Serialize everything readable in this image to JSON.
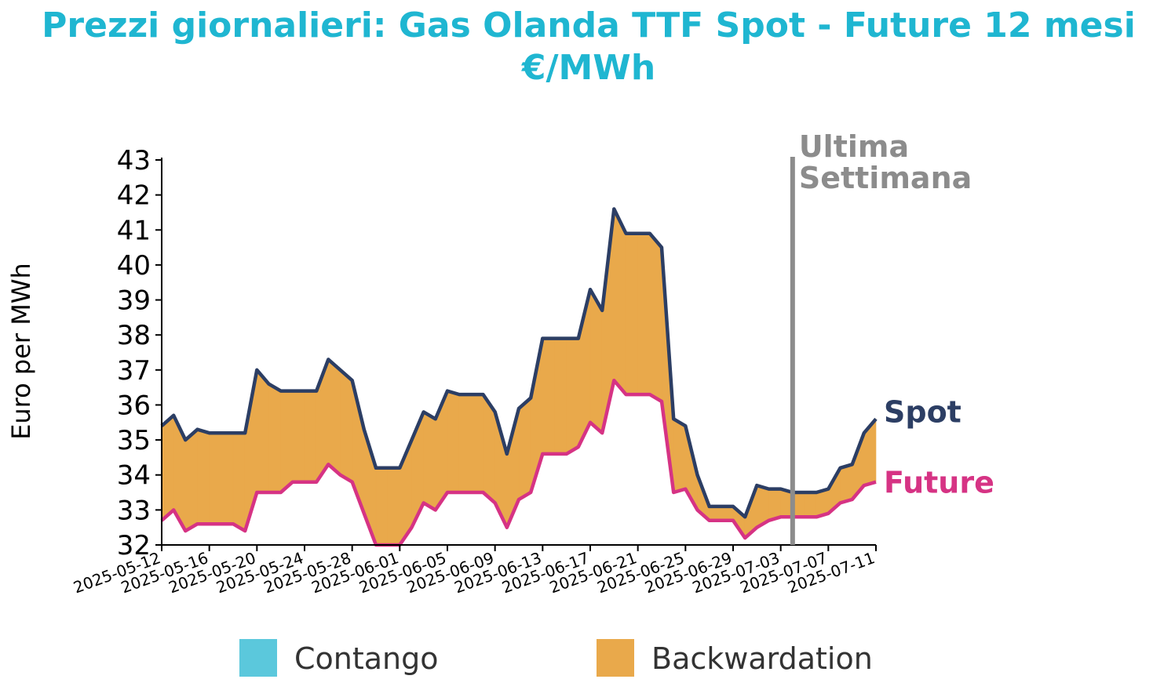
{
  "chart_data": {
    "type": "line",
    "title": "Prezzi giornalieri: Gas Olanda TTF Spot - Future 12 mesi",
    "subtitle": "€/MWh",
    "ylabel": "Euro per MWh",
    "xlabel": "",
    "ylim": [
      32,
      43
    ],
    "yticks": [
      32,
      33,
      34,
      35,
      36,
      37,
      38,
      39,
      40,
      41,
      42,
      43
    ],
    "xlim": [
      "2025-05-12",
      "2025-07-11"
    ],
    "xticks": [
      "2025-05-12",
      "2025-05-16",
      "2025-05-20",
      "2025-05-24",
      "2025-05-28",
      "2025-06-01",
      "2025-06-05",
      "2025-06-09",
      "2025-06-13",
      "2025-06-17",
      "2025-06-21",
      "2025-06-25",
      "2025-06-29",
      "2025-07-03",
      "2025-07-07",
      "2025-07-11"
    ],
    "marker_line": {
      "date": "2025-07-04",
      "label_line1": "Ultima",
      "label_line2": "Settimana"
    },
    "series": [
      {
        "name": "Spot",
        "color": "#2c3e64",
        "points": [
          [
            "2025-05-12",
            35.4
          ],
          [
            "2025-05-13",
            35.7
          ],
          [
            "2025-05-14",
            35.0
          ],
          [
            "2025-05-15",
            35.3
          ],
          [
            "2025-05-16",
            35.2
          ],
          [
            "2025-05-17",
            35.2
          ],
          [
            "2025-05-18",
            35.2
          ],
          [
            "2025-05-19",
            35.2
          ],
          [
            "2025-05-20",
            37.0
          ],
          [
            "2025-05-21",
            36.6
          ],
          [
            "2025-05-22",
            36.4
          ],
          [
            "2025-05-23",
            36.4
          ],
          [
            "2025-05-24",
            36.4
          ],
          [
            "2025-05-25",
            36.4
          ],
          [
            "2025-05-26",
            37.3
          ],
          [
            "2025-05-27",
            37.0
          ],
          [
            "2025-05-28",
            36.7
          ],
          [
            "2025-05-29",
            35.3
          ],
          [
            "2025-05-30",
            34.2
          ],
          [
            "2025-05-31",
            34.2
          ],
          [
            "2025-06-01",
            34.2
          ],
          [
            "2025-06-02",
            35.0
          ],
          [
            "2025-06-03",
            35.8
          ],
          [
            "2025-06-04",
            35.6
          ],
          [
            "2025-06-05",
            36.4
          ],
          [
            "2025-06-06",
            36.3
          ],
          [
            "2025-06-07",
            36.3
          ],
          [
            "2025-06-08",
            36.3
          ],
          [
            "2025-06-09",
            35.8
          ],
          [
            "2025-06-10",
            34.6
          ],
          [
            "2025-06-11",
            35.9
          ],
          [
            "2025-06-12",
            36.2
          ],
          [
            "2025-06-13",
            37.9
          ],
          [
            "2025-06-14",
            37.9
          ],
          [
            "2025-06-15",
            37.9
          ],
          [
            "2025-06-16",
            37.9
          ],
          [
            "2025-06-17",
            39.3
          ],
          [
            "2025-06-18",
            38.7
          ],
          [
            "2025-06-19",
            41.6
          ],
          [
            "2025-06-20",
            40.9
          ],
          [
            "2025-06-21",
            40.9
          ],
          [
            "2025-06-22",
            40.9
          ],
          [
            "2025-06-23",
            40.5
          ],
          [
            "2025-06-24",
            35.6
          ],
          [
            "2025-06-25",
            35.4
          ],
          [
            "2025-06-26",
            34.0
          ],
          [
            "2025-06-27",
            33.1
          ],
          [
            "2025-06-28",
            33.1
          ],
          [
            "2025-06-29",
            33.1
          ],
          [
            "2025-06-30",
            32.8
          ],
          [
            "2025-07-01",
            33.7
          ],
          [
            "2025-07-02",
            33.6
          ],
          [
            "2025-07-03",
            33.6
          ],
          [
            "2025-07-04",
            33.5
          ],
          [
            "2025-07-05",
            33.5
          ],
          [
            "2025-07-06",
            33.5
          ],
          [
            "2025-07-07",
            33.6
          ],
          [
            "2025-07-08",
            34.2
          ],
          [
            "2025-07-09",
            34.3
          ],
          [
            "2025-07-10",
            35.2
          ],
          [
            "2025-07-11",
            35.6
          ]
        ]
      },
      {
        "name": "Future",
        "color": "#d63384",
        "points": [
          [
            "2025-05-12",
            32.7
          ],
          [
            "2025-05-13",
            33.0
          ],
          [
            "2025-05-14",
            32.4
          ],
          [
            "2025-05-15",
            32.6
          ],
          [
            "2025-05-16",
            32.6
          ],
          [
            "2025-05-17",
            32.6
          ],
          [
            "2025-05-18",
            32.6
          ],
          [
            "2025-05-19",
            32.4
          ],
          [
            "2025-05-20",
            33.5
          ],
          [
            "2025-05-21",
            33.5
          ],
          [
            "2025-05-22",
            33.5
          ],
          [
            "2025-05-23",
            33.8
          ],
          [
            "2025-05-24",
            33.8
          ],
          [
            "2025-05-25",
            33.8
          ],
          [
            "2025-05-26",
            34.3
          ],
          [
            "2025-05-27",
            34.0
          ],
          [
            "2025-05-28",
            33.8
          ],
          [
            "2025-05-29",
            32.9
          ],
          [
            "2025-05-30",
            32.0
          ],
          [
            "2025-05-31",
            32.0
          ],
          [
            "2025-06-01",
            32.0
          ],
          [
            "2025-06-02",
            32.5
          ],
          [
            "2025-06-03",
            33.2
          ],
          [
            "2025-06-04",
            33.0
          ],
          [
            "2025-06-05",
            33.5
          ],
          [
            "2025-06-06",
            33.5
          ],
          [
            "2025-06-07",
            33.5
          ],
          [
            "2025-06-08",
            33.5
          ],
          [
            "2025-06-09",
            33.2
          ],
          [
            "2025-06-10",
            32.5
          ],
          [
            "2025-06-11",
            33.3
          ],
          [
            "2025-06-12",
            33.5
          ],
          [
            "2025-06-13",
            34.6
          ],
          [
            "2025-06-14",
            34.6
          ],
          [
            "2025-06-15",
            34.6
          ],
          [
            "2025-06-16",
            34.8
          ],
          [
            "2025-06-17",
            35.5
          ],
          [
            "2025-06-18",
            35.2
          ],
          [
            "2025-06-19",
            36.7
          ],
          [
            "2025-06-20",
            36.3
          ],
          [
            "2025-06-21",
            36.3
          ],
          [
            "2025-06-22",
            36.3
          ],
          [
            "2025-06-23",
            36.1
          ],
          [
            "2025-06-24",
            33.5
          ],
          [
            "2025-06-25",
            33.6
          ],
          [
            "2025-06-26",
            33.0
          ],
          [
            "2025-06-27",
            32.7
          ],
          [
            "2025-06-28",
            32.7
          ],
          [
            "2025-06-29",
            32.7
          ],
          [
            "2025-06-30",
            32.2
          ],
          [
            "2025-07-01",
            32.5
          ],
          [
            "2025-07-02",
            32.7
          ],
          [
            "2025-07-03",
            32.8
          ],
          [
            "2025-07-04",
            32.8
          ],
          [
            "2025-07-05",
            32.8
          ],
          [
            "2025-07-06",
            32.8
          ],
          [
            "2025-07-07",
            32.9
          ],
          [
            "2025-07-08",
            33.2
          ],
          [
            "2025-07-09",
            33.3
          ],
          [
            "2025-07-10",
            33.7
          ],
          [
            "2025-07-11",
            33.8
          ]
        ]
      }
    ],
    "legend": {
      "placement": "bottom",
      "items": [
        {
          "label": "Contango",
          "color": "#5bc8dc"
        },
        {
          "label": "Backwardation",
          "color": "#e9a94b"
        }
      ]
    },
    "colors": {
      "title": "#1fb6d1",
      "marker_line": "#8c8c8c",
      "axis": "#000000"
    }
  }
}
